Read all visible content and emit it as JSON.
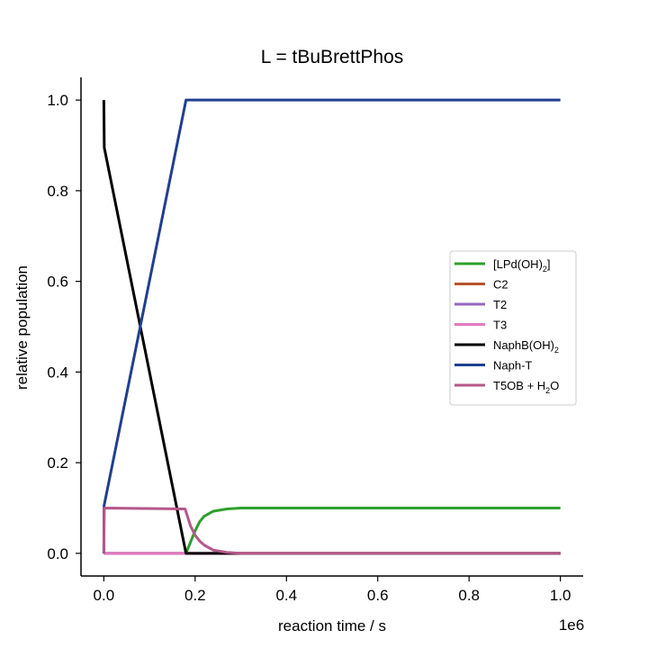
{
  "chart_data": {
    "type": "line",
    "title": "L = tBuBrettPhos",
    "xlabel": "reaction time / s",
    "ylabel": "relative population",
    "x_offset_label": "1e6",
    "xlim": [
      -0.05,
      1.05
    ],
    "ylim": [
      -0.05,
      1.05
    ],
    "x_ticks": [
      0.0,
      0.2,
      0.4,
      0.6,
      0.8,
      1.0
    ],
    "x_tick_labels": [
      "0.0",
      "0.2",
      "0.4",
      "0.6",
      "0.8",
      "1.0"
    ],
    "y_ticks": [
      0.0,
      0.2,
      0.4,
      0.6,
      0.8,
      1.0
    ],
    "y_tick_labels": [
      "0.0",
      "0.2",
      "0.4",
      "0.6",
      "0.8",
      "1.0"
    ],
    "grid": false,
    "legend_position": "right",
    "series": [
      {
        "name": "[LPd(OH)2]",
        "legend": [
          "[LPd(OH)",
          "2",
          "]"
        ],
        "color": "#2ca02c",
        "x": [
          0,
          0.18,
          0.19,
          0.2,
          0.21,
          0.22,
          0.24,
          0.27,
          0.3,
          0.35,
          1.0
        ],
        "y": [
          0,
          0,
          0.025,
          0.05,
          0.07,
          0.082,
          0.093,
          0.098,
          0.1,
          0.1,
          0.1
        ]
      },
      {
        "name": "C2",
        "legend": [
          "C2"
        ],
        "color": "#b5532b",
        "x": [
          0,
          1.0
        ],
        "y": [
          0,
          0
        ]
      },
      {
        "name": "T2",
        "legend": [
          "T2"
        ],
        "color": "#9467bd",
        "x": [
          0,
          1.0
        ],
        "y": [
          0,
          0
        ]
      },
      {
        "name": "T3",
        "legend": [
          "T3"
        ],
        "color": "#e377c2",
        "x": [
          0,
          1.0
        ],
        "y": [
          0,
          0
        ]
      },
      {
        "name": "NaphB(OH)2",
        "legend": [
          "NaphB(OH)",
          "2",
          ""
        ],
        "color": "#000000",
        "x": [
          0,
          0.001,
          0.18,
          0.19,
          1.0
        ],
        "y": [
          1.0,
          0.895,
          0.0,
          0.0,
          0.0
        ]
      },
      {
        "name": "Naph-T",
        "legend": [
          "Naph-T"
        ],
        "color": "#203f8e",
        "x": [
          0,
          0.0005,
          0.18,
          0.19,
          1.0
        ],
        "y": [
          0.0,
          0.105,
          1.0,
          1.0,
          1.0
        ]
      },
      {
        "name": "T5OB + H2O",
        "legend": [
          "T5OB + H",
          "2",
          "O"
        ],
        "color": "#b5578a",
        "x": [
          0,
          0.001,
          0.178,
          0.19,
          0.2,
          0.21,
          0.22,
          0.24,
          0.27,
          0.3,
          0.35,
          1.0
        ],
        "y": [
          0.0,
          0.1,
          0.098,
          0.06,
          0.04,
          0.027,
          0.018,
          0.007,
          0.002,
          0.0,
          0.0,
          0.0
        ]
      }
    ]
  }
}
